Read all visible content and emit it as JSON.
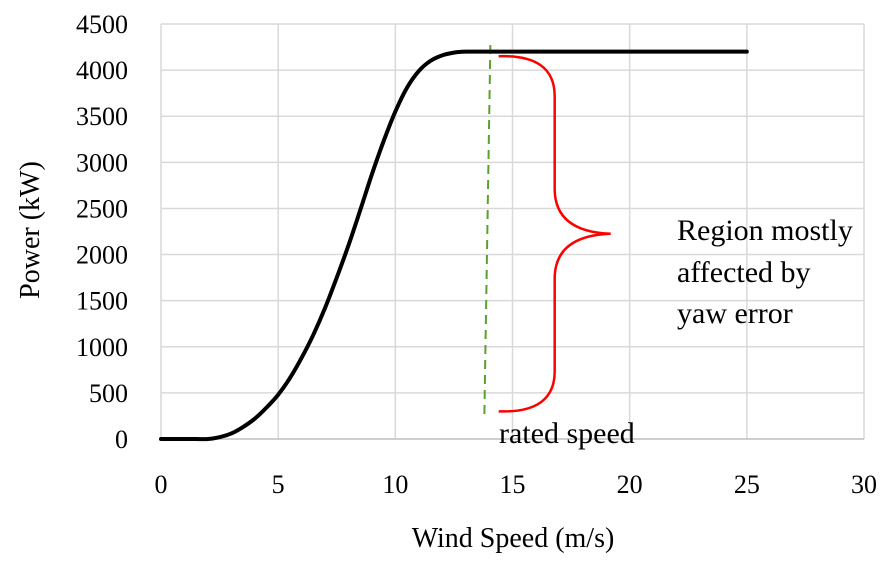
{
  "chart_data": {
    "type": "line",
    "xlabel": "Wind Speed (m/s)",
    "ylabel": "Power (kW)",
    "xlim": [
      0,
      30
    ],
    "ylim": [
      0,
      4500
    ],
    "x_ticks": [
      0,
      5,
      10,
      15,
      20,
      25,
      30
    ],
    "y_ticks": [
      0,
      500,
      1000,
      1500,
      2000,
      2500,
      3000,
      3500,
      4000,
      4500
    ],
    "grid": true,
    "legend": "none",
    "series": [
      {
        "color": "#000000",
        "x": [
          0,
          1,
          1.5,
          2,
          2.5,
          3,
          3.5,
          4,
          4.5,
          5,
          5.5,
          6,
          6.5,
          7,
          7.5,
          8,
          8.5,
          9,
          9.5,
          10,
          10.5,
          11,
          11.5,
          12,
          12.5,
          13,
          13.5,
          14,
          15,
          16,
          17,
          18,
          19,
          20,
          21,
          22,
          23,
          24,
          25
        ],
        "y": [
          0,
          0,
          0,
          0,
          20,
          60,
          130,
          220,
          340,
          480,
          660,
          880,
          1130,
          1420,
          1750,
          2100,
          2480,
          2870,
          3230,
          3550,
          3810,
          3990,
          4100,
          4160,
          4190,
          4200,
          4200,
          4200,
          4200,
          4200,
          4200,
          4200,
          4200,
          4200,
          4200,
          4200,
          4200,
          4200,
          4200
        ]
      }
    ],
    "rated_speed": {
      "x": 13.8,
      "label": "rated speed",
      "color": "#5aa02c"
    },
    "region": {
      "y_top": 4150,
      "y_bottom": 300,
      "x": 16.8,
      "color": "#ff0000",
      "label_lines": [
        "Region mostly",
        "affected by",
        "yaw error"
      ]
    }
  }
}
